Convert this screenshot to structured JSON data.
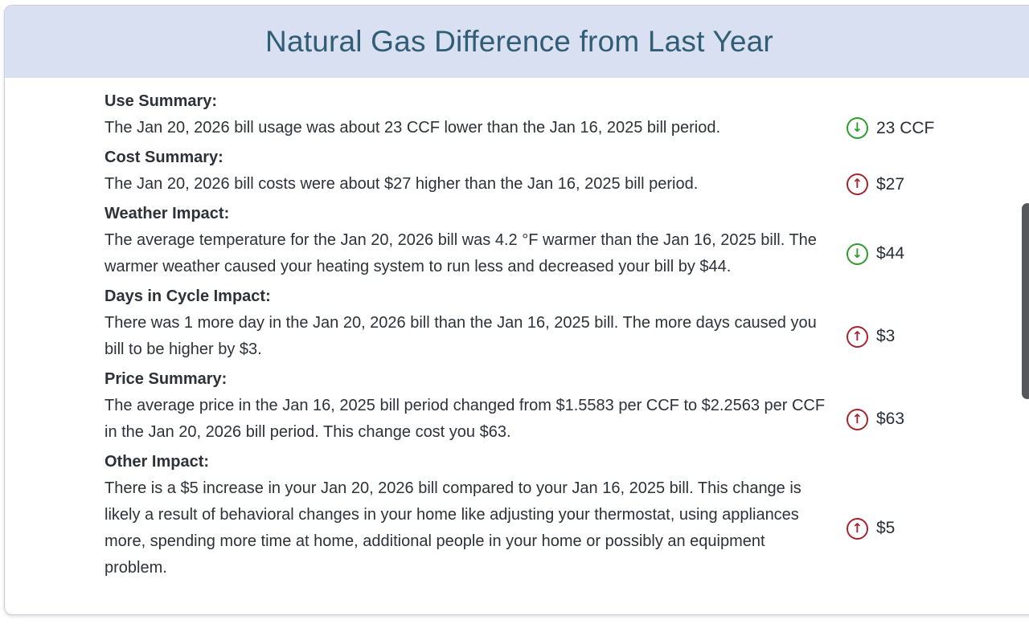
{
  "title": "Natural Gas Difference from Last Year",
  "colors": {
    "header-bg": "#d9e0f1",
    "title-color": "#315d75",
    "decrease": "#2e9b2e",
    "increase": "#a3262e"
  },
  "icons": {
    "down_arrow": "↓",
    "up_arrow": "↑"
  },
  "sections": [
    {
      "heading": "Use Summary:",
      "text": "The Jan 20, 2026 bill usage was about 23 CCF lower than the Jan 16, 2025 bill period.",
      "direction": "down",
      "value": "23 CCF"
    },
    {
      "heading": "Cost Summary:",
      "text": "The Jan 20, 2026 bill costs were about $27 higher than the Jan 16, 2025 bill period.",
      "direction": "up",
      "value": "$27"
    },
    {
      "heading": "Weather Impact:",
      "text": "The average temperature for the Jan 20, 2026 bill was 4.2 °F warmer than the Jan 16, 2025 bill. The warmer weather caused your heating system to run less and decreased your bill by $44.",
      "direction": "down",
      "value": "$44"
    },
    {
      "heading": "Days in Cycle Impact:",
      "text": "There was 1 more day in the Jan 20, 2026 bill than the Jan 16, 2025 bill. The more days caused you bill to be higher by $3.",
      "direction": "up",
      "value": "$3"
    },
    {
      "heading": "Price Summary:",
      "text": "The average price in the Jan 16, 2025 bill period changed from $1.5583 per CCF to $2.2563 per CCF in the Jan 20, 2026 bill period. This change cost you $63.",
      "direction": "up",
      "value": "$63"
    },
    {
      "heading": "Other Impact:",
      "text": "There is a $5 increase in your Jan 20, 2026 bill compared to your Jan 16, 2025 bill. This change is likely a result of behavioral changes in your home like adjusting your thermostat, using appliances more, spending more time at home, additional people in your home or possibly an equipment problem.",
      "direction": "up",
      "value": "$5"
    }
  ]
}
